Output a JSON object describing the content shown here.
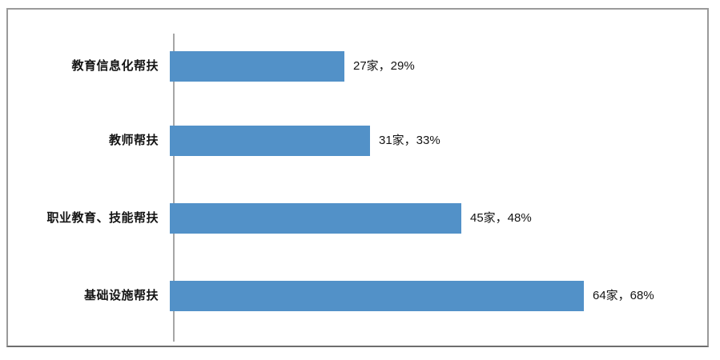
{
  "chart_data": {
    "type": "bar",
    "orientation": "horizontal",
    "title": "",
    "xlabel": "",
    "ylabel": "",
    "unit": "家",
    "categories": [
      "教育信息化帮扶",
      "教师帮扶",
      "职业教育、技能帮扶",
      "基础设施帮扶"
    ],
    "values": [
      27,
      31,
      45,
      64
    ],
    "percentages": [
      "29%",
      "33%",
      "48%",
      "68%"
    ],
    "data_labels": [
      "27家，29%",
      "31家，33%",
      "45家，48%",
      "64家，68%"
    ],
    "legend": null,
    "gridlines": false,
    "axis_ticks_visible": false,
    "bar_color": "#5291C8",
    "axis_line_color": "#A6A6A6",
    "frame_border_color": "#9A9A9A",
    "background_color": "#FFFFFF",
    "label_color": "#141414"
  }
}
